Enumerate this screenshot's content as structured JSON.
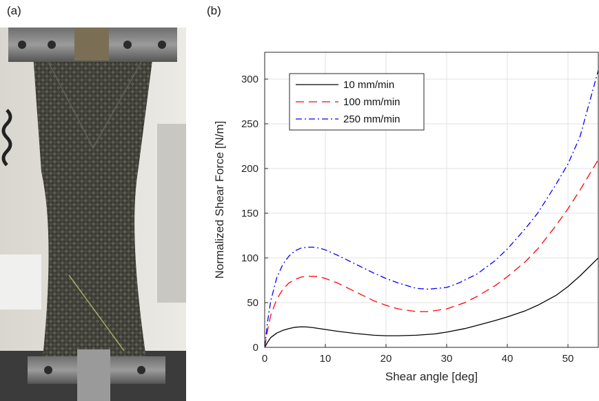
{
  "panels": {
    "a_label": "(a)",
    "b_label": "(b)"
  },
  "photo": {
    "subject": "bias-extension-specimen-photo"
  },
  "chart_data": {
    "type": "line",
    "title": "",
    "xlabel": "Shear angle [deg]",
    "ylabel": "Normalized Shear Force [N/m]",
    "xlim": [
      0,
      55
    ],
    "ylim": [
      0,
      330
    ],
    "xticks": [
      0,
      10,
      20,
      30,
      40,
      50
    ],
    "yticks": [
      0,
      50,
      100,
      150,
      200,
      250,
      300
    ],
    "grid": true,
    "legend_position": "top-left",
    "series": [
      {
        "name": "10 mm/min",
        "color": "#000000",
        "dash": "solid",
        "x": [
          0,
          0.5,
          1,
          2,
          3,
          4,
          5,
          6,
          7,
          8,
          10,
          12,
          15,
          18,
          20,
          22,
          25,
          28,
          30,
          33,
          35,
          38,
          40,
          43,
          45,
          48,
          50,
          52,
          55
        ],
        "y": [
          0,
          6,
          11,
          16,
          19,
          21,
          22.5,
          23,
          22.8,
          22,
          20,
          18,
          15.5,
          13.5,
          13,
          13,
          13.5,
          15,
          17,
          21,
          24.5,
          30,
          34,
          41,
          47,
          58,
          68,
          80,
          100
        ]
      },
      {
        "name": "100 mm/min",
        "color": "#ff0000",
        "dash": "long-dash",
        "x": [
          0,
          0.5,
          1,
          2,
          3,
          4,
          5,
          6,
          7,
          8,
          9,
          10,
          12,
          15,
          18,
          20,
          22,
          25,
          27,
          30,
          33,
          35,
          38,
          40,
          43,
          45,
          48,
          50,
          52,
          55
        ],
        "y": [
          0,
          20,
          36,
          54,
          65,
          72,
          76,
          78.5,
          79.5,
          79.5,
          79,
          77,
          72,
          62,
          52,
          47,
          43,
          40,
          40,
          43,
          50,
          57,
          69,
          79,
          96,
          110,
          136,
          155,
          176,
          210
        ]
      },
      {
        "name": "250 mm/min",
        "color": "#0000ff",
        "dash": "dash-dot",
        "x": [
          0,
          0.5,
          1,
          2,
          3,
          4,
          5,
          6,
          7,
          8,
          9,
          10,
          12,
          15,
          18,
          20,
          22,
          25,
          27,
          30,
          32,
          35,
          38,
          40,
          43,
          45,
          48,
          50,
          52,
          55
        ],
        "y": [
          0,
          30,
          52,
          78,
          93,
          102,
          108,
          111,
          112,
          112,
          111,
          109,
          103,
          93,
          83,
          77,
          72,
          66,
          65,
          67,
          72,
          82,
          97,
          110,
          133,
          150,
          182,
          205,
          236,
          310
        ]
      }
    ]
  }
}
